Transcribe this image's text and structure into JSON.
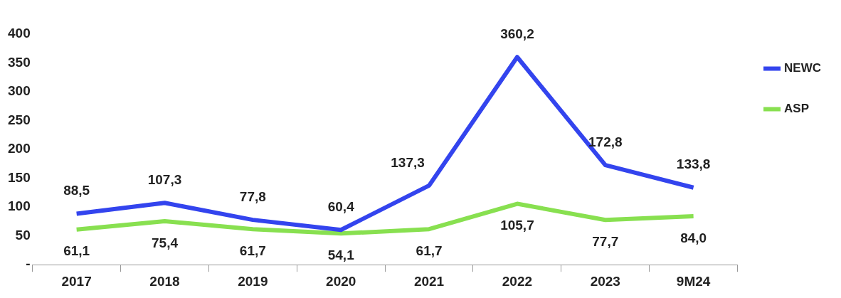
{
  "chart_data": {
    "type": "line",
    "categories": [
      "2017",
      "2018",
      "2019",
      "2020",
      "2021",
      "2022",
      "2023",
      "9M24"
    ],
    "series": [
      {
        "name": "NEWC",
        "color": "#3344ee",
        "values": [
          88.5,
          107.3,
          77.8,
          60.4,
          137.3,
          360.2,
          172.8,
          133.8
        ],
        "value_labels": [
          "88,5",
          "107,3",
          "77,8",
          "60,4",
          "137,3",
          "360,2",
          "172,8",
          "133,8"
        ]
      },
      {
        "name": "ASP",
        "color": "#88e050",
        "values": [
          61.1,
          75.4,
          61.7,
          54.1,
          61.7,
          105.7,
          77.7,
          84.0
        ],
        "value_labels": [
          "61,1",
          "75,4",
          "61,7",
          "54,1",
          "61,7",
          "105,7",
          "77,7",
          "84,0"
        ]
      }
    ],
    "ylim": [
      0,
      400
    ],
    "yticks": [
      {
        "value": 0,
        "label": "-"
      },
      50,
      100,
      150,
      200,
      250,
      300,
      350,
      400
    ],
    "grid": false,
    "legend": "top right",
    "marker": "none",
    "line_style": "solid"
  }
}
